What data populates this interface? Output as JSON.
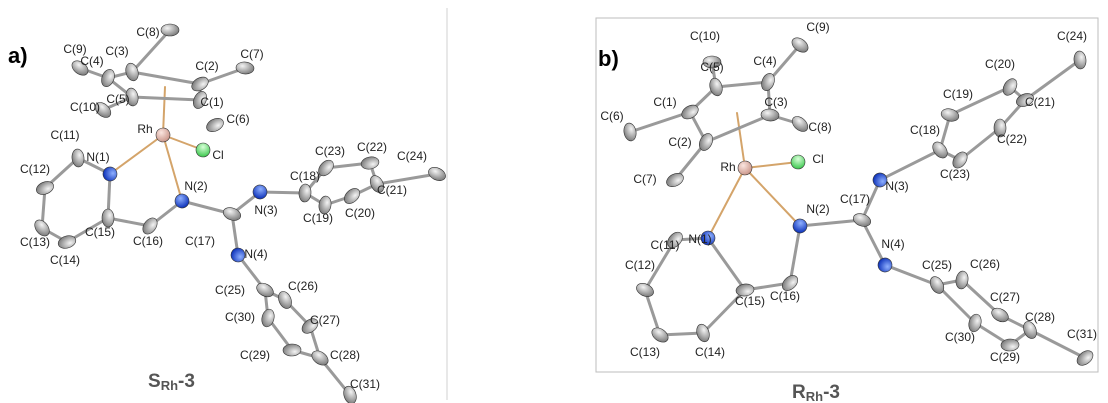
{
  "panels": [
    {
      "letter": "a)",
      "atoms": [
        "C(8)",
        "C(9)",
        "C(3)",
        "C(4)",
        "C(2)",
        "C(7)",
        "C(10)",
        "C(5)",
        "C(1)",
        "C(6)",
        "Rh",
        "Cl",
        "C(11)",
        "N(1)",
        "C(12)",
        "N(2)",
        "C(13)",
        "C(15)",
        "C(16)",
        "C(14)",
        "C(17)",
        "N(3)",
        "C(18)",
        "C(23)",
        "C(22)",
        "C(24)",
        "C(21)",
        "C(19)",
        "C(20)",
        "N(4)",
        "C(25)",
        "C(26)",
        "C(30)",
        "C(27)",
        "C(29)",
        "C(28)",
        "C(31)"
      ],
      "compound": {
        "label": "S",
        "subscript": "Rh",
        "suffix": "-3"
      }
    },
    {
      "letter": "b)",
      "atoms": [
        "C(10)",
        "C(9)",
        "C(5)",
        "C(4)",
        "C(1)",
        "C(3)",
        "C(8)",
        "C(6)",
        "C(2)",
        "C(7)",
        "Rh",
        "Cl",
        "C(24)",
        "C(20)",
        "C(21)",
        "C(19)",
        "C(18)",
        "C(22)",
        "C(23)",
        "N(3)",
        "C(17)",
        "N(2)",
        "N(1)",
        "C(11)",
        "N(4)",
        "C(12)",
        "C(25)",
        "C(26)",
        "C(16)",
        "C(15)",
        "C(27)",
        "C(28)",
        "C(30)",
        "C(31)",
        "C(29)",
        "C(13)",
        "C(14)"
      ],
      "compound": {
        "label": "R",
        "subscript": "Rh",
        "suffix": "-3"
      }
    }
  ]
}
